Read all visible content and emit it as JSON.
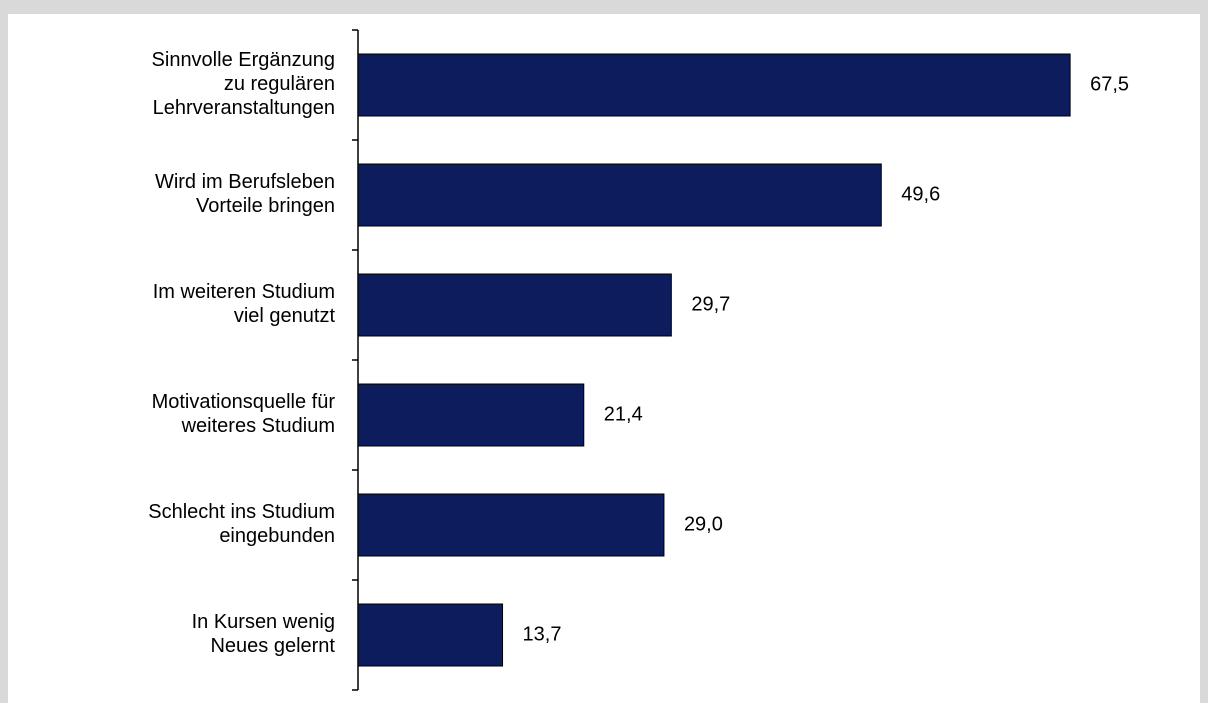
{
  "chart_data": {
    "type": "barh",
    "categories": [
      "Sinnvolle Ergänzung\nzu regulären\nLehrveranstaltungen",
      "Wird im Berufsleben\nVorteile bringen",
      "Im weiteren Studium\nviel genutzt",
      "Motivationsquelle für\nweiteres Studium",
      "Schlecht ins Studium\neingebunden",
      "In Kursen wenig\nNeues gelernt"
    ],
    "values": [
      67.5,
      49.6,
      29.7,
      21.4,
      29.0,
      13.7
    ],
    "value_labels": [
      "67,5",
      "49,6",
      "29,7",
      "21,4",
      "29,0",
      "13,7"
    ],
    "color": "#0c1c5c"
  }
}
